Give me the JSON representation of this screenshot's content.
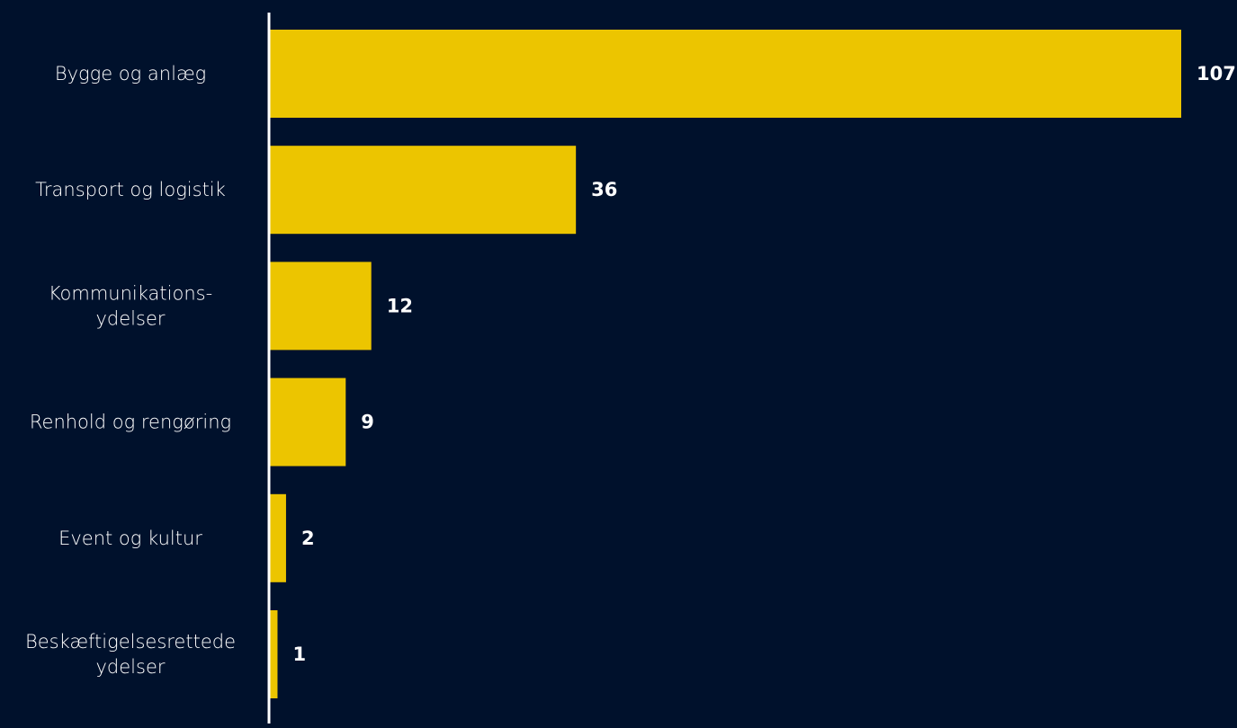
{
  "chart_data": {
    "type": "bar",
    "orientation": "horizontal",
    "title": "",
    "xlabel": "",
    "ylabel": "",
    "grid": false,
    "legend": "none",
    "xlim": [
      0,
      107
    ],
    "categories": [
      [
        "Bygge og anlæg"
      ],
      [
        "Transport og logistik"
      ],
      [
        "Kommunikations-",
        "ydelser"
      ],
      [
        "Renhold og rengøring"
      ],
      [
        "Event og kultur"
      ],
      [
        "Beskæftigelsesrettede",
        "ydelser"
      ]
    ],
    "values": [
      107,
      36,
      12,
      9,
      2,
      1
    ],
    "value_labels": [
      "107",
      "36",
      "12",
      "9",
      "2",
      "1"
    ]
  },
  "colors": {
    "background": "#00112c",
    "bar": "#ecc500",
    "axis": "#ffffff",
    "text": "#ffffff"
  }
}
